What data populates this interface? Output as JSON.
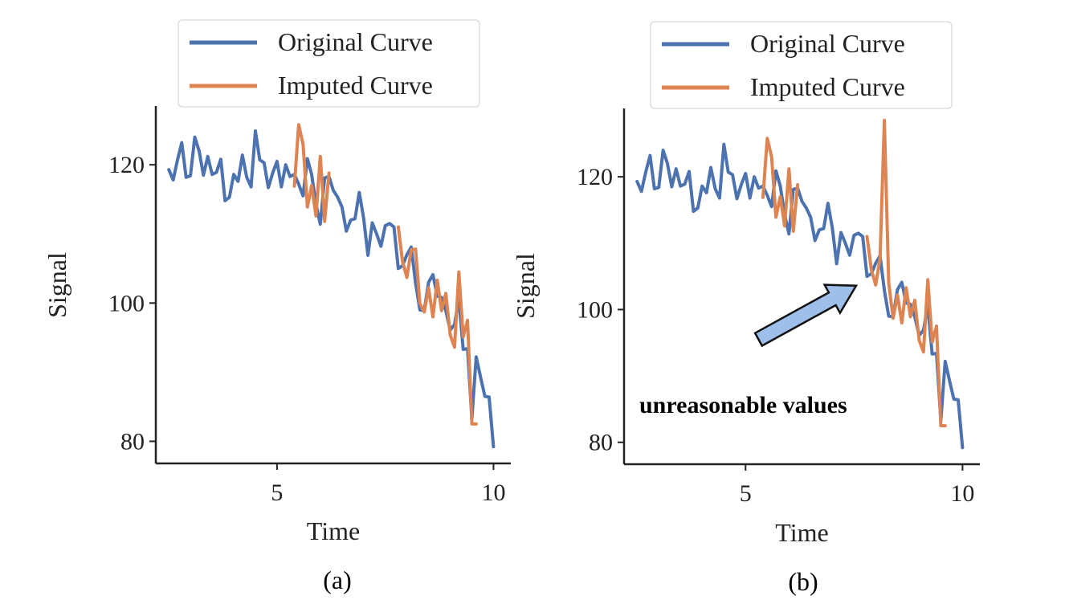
{
  "chart_data": [
    {
      "type": "line",
      "caption": "(a)",
      "xlabel": "Time",
      "ylabel": "Signal",
      "xticks": [
        5,
        10
      ],
      "yticks": [
        80,
        100,
        120
      ],
      "xlim": [
        2.2,
        10.4
      ],
      "ylim": [
        76.8,
        128.5
      ],
      "legend_position": "top",
      "series": [
        {
          "name": "Original Curve",
          "color": "#4c72b0",
          "x": [
            2.5,
            2.6,
            2.7,
            2.8,
            2.9,
            3.0,
            3.1,
            3.2,
            3.3,
            3.4,
            3.5,
            3.6,
            3.7,
            3.8,
            3.9,
            4.0,
            4.1,
            4.2,
            4.3,
            4.4,
            4.5,
            4.6,
            4.7,
            4.8,
            4.9,
            5.0,
            5.1,
            5.2,
            5.3,
            5.4,
            5.5,
            5.6,
            5.7,
            5.8,
            5.9,
            6.0,
            6.1,
            6.2,
            6.3,
            6.4,
            6.5,
            6.6,
            6.7,
            6.8,
            6.9,
            7.0,
            7.1,
            7.2,
            7.3,
            7.4,
            7.5,
            7.6,
            7.7,
            7.8,
            7.9,
            8.0,
            8.1,
            8.2,
            8.3,
            8.4,
            8.5,
            8.6,
            8.7,
            8.8,
            8.9,
            9.0,
            9.1,
            9.2,
            9.3,
            9.4,
            9.5,
            9.6,
            9.7,
            9.8,
            9.9,
            10.0
          ],
          "y": [
            119.3,
            117.8,
            120.7,
            123.2,
            118.2,
            118.4,
            124.0,
            122.0,
            118.5,
            121.2,
            118.6,
            118.9,
            120.8,
            114.8,
            115.3,
            118.6,
            117.6,
            121.4,
            118.2,
            116.8,
            124.9,
            120.7,
            120.3,
            116.7,
            118.8,
            120.5,
            116.8,
            120.0,
            118.3,
            118.6,
            117.2,
            115.5,
            120.9,
            118.6,
            114.3,
            111.4,
            118.1,
            118.3,
            116.3,
            115.3,
            113.9,
            110.4,
            112.0,
            112.2,
            116.0,
            112.3,
            106.9,
            111.6,
            110.0,
            108.2,
            111.2,
            111.5,
            111.0,
            105.0,
            105.4,
            107.0,
            108.1,
            102.9,
            99.0,
            98.9,
            103.0,
            104.1,
            101.0,
            100.8,
            98.9,
            96.1,
            96.9,
            100.6,
            93.3,
            93.4,
            83.3,
            92.2,
            89.3,
            86.5,
            86.4,
            79.2
          ]
        },
        {
          "name": "Imputed Curve",
          "color": "#dd8452",
          "segments": [
            {
              "x": [
                5.4,
                5.5,
                5.6,
                5.7,
                5.8,
                5.9,
                6.0,
                6.1,
                6.2
              ],
              "y": [
                116.9,
                125.8,
                123.0,
                113.9,
                117.0,
                112.6,
                121.2,
                111.8,
                118.8
              ]
            },
            {
              "x": [
                7.8,
                7.9,
                8.0,
                8.1,
                8.2,
                8.3,
                8.4,
                8.5,
                8.6,
                8.7,
                8.8,
                8.9,
                9.0,
                9.1,
                9.2,
                9.3,
                9.4,
                9.5,
                9.6
              ],
              "y": [
                111.0,
                106.0,
                103.7,
                107.7,
                107.8,
                99.9,
                98.7,
                102.2,
                98.0,
                103.3,
                98.9,
                101.4,
                95.4,
                93.6,
                104.5,
                95.1,
                97.5,
                82.5,
                82.5
              ]
            }
          ]
        }
      ]
    },
    {
      "type": "line",
      "caption": "(b)",
      "xlabel": "Time",
      "ylabel": "Signal",
      "xticks": [
        5,
        10
      ],
      "yticks": [
        80,
        100,
        120
      ],
      "xlim": [
        2.2,
        10.4
      ],
      "ylim": [
        76.7,
        130.3
      ],
      "legend_position": "top",
      "annotation": {
        "text": "unreasonable values",
        "arrow_tip": {
          "x": 7.55,
          "y": 103.6
        },
        "arrow_tail": {
          "x": 5.3,
          "y": 95.5
        }
      },
      "series": [
        {
          "name": "Original Curve",
          "color": "#4c72b0",
          "x": [
            2.5,
            2.6,
            2.7,
            2.8,
            2.9,
            3.0,
            3.1,
            3.2,
            3.3,
            3.4,
            3.5,
            3.6,
            3.7,
            3.8,
            3.9,
            4.0,
            4.1,
            4.2,
            4.3,
            4.4,
            4.5,
            4.6,
            4.7,
            4.8,
            4.9,
            5.0,
            5.1,
            5.2,
            5.3,
            5.4,
            5.5,
            5.6,
            5.7,
            5.8,
            5.9,
            6.0,
            6.1,
            6.2,
            6.3,
            6.4,
            6.5,
            6.6,
            6.7,
            6.8,
            6.9,
            7.0,
            7.1,
            7.2,
            7.3,
            7.4,
            7.5,
            7.6,
            7.7,
            7.8,
            7.9,
            8.0,
            8.1,
            8.2,
            8.3,
            8.4,
            8.5,
            8.6,
            8.7,
            8.8,
            8.9,
            9.0,
            9.1,
            9.2,
            9.3,
            9.4,
            9.5,
            9.6,
            9.7,
            9.8,
            9.9,
            10.0
          ],
          "y": [
            119.3,
            117.8,
            120.7,
            123.2,
            118.2,
            118.4,
            124.0,
            122.0,
            118.5,
            121.2,
            118.6,
            118.9,
            120.8,
            114.8,
            115.3,
            118.6,
            117.6,
            121.4,
            118.2,
            116.8,
            124.9,
            120.7,
            120.3,
            116.7,
            118.8,
            120.5,
            116.8,
            120.0,
            118.3,
            118.6,
            117.2,
            115.5,
            120.9,
            118.6,
            114.3,
            111.4,
            118.1,
            118.3,
            116.3,
            115.3,
            113.9,
            110.4,
            112.0,
            112.2,
            116.0,
            112.3,
            106.9,
            111.6,
            110.0,
            108.2,
            111.2,
            111.5,
            111.0,
            105.0,
            105.4,
            107.0,
            108.1,
            102.9,
            99.0,
            98.9,
            103.0,
            104.1,
            101.0,
            100.8,
            98.9,
            96.1,
            96.9,
            100.6,
            93.3,
            93.4,
            83.3,
            92.2,
            89.3,
            86.5,
            86.4,
            79.2
          ]
        },
        {
          "name": "Imputed Curve",
          "color": "#dd8452",
          "segments": [
            {
              "x": [
                5.4,
                5.5,
                5.6,
                5.7,
                5.8,
                5.9,
                6.0,
                6.1,
                6.2
              ],
              "y": [
                116.9,
                125.8,
                123.0,
                113.9,
                117.0,
                112.6,
                121.2,
                111.8,
                118.8
              ]
            },
            {
              "x": [
                7.8,
                7.9,
                8.0,
                8.1,
                8.2,
                8.3,
                8.4,
                8.5,
                8.6,
                8.7,
                8.8,
                8.9,
                9.0,
                9.1,
                9.2,
                9.3,
                9.4,
                9.5,
                9.6
              ],
              "y": [
                111.0,
                106.0,
                103.7,
                107.7,
                128.5,
                104.0,
                98.7,
                102.2,
                98.0,
                103.3,
                98.9,
                101.4,
                95.4,
                93.6,
                104.5,
                95.1,
                97.5,
                82.5,
                82.5
              ]
            }
          ]
        }
      ]
    }
  ]
}
